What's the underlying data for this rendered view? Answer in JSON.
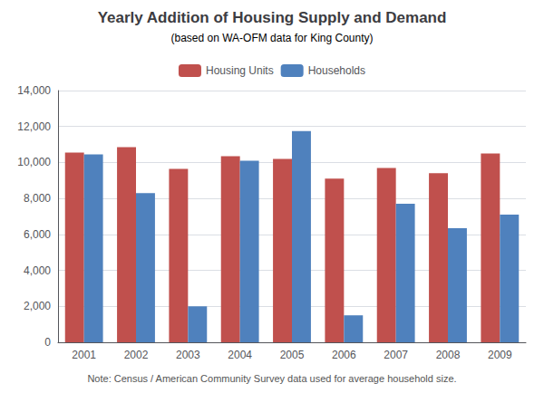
{
  "chart_data": {
    "type": "bar",
    "title": "Yearly Addition of Housing Supply and Demand",
    "subtitle": "(based on WA-OFM data for King County)",
    "annotations": [
      "Note: Census / American Community Survey data used for average household size."
    ],
    "categories": [
      "2001",
      "2002",
      "2003",
      "2004",
      "2005",
      "2006",
      "2007",
      "2008",
      "2009"
    ],
    "series": [
      {
        "name": "Housing Units",
        "color": "#C0504D",
        "values": [
          10550,
          10850,
          9650,
          10350,
          10200,
          9100,
          9700,
          9400,
          10500
        ]
      },
      {
        "name": "Households",
        "color": "#4F81BD",
        "values": [
          10450,
          8300,
          2000,
          10100,
          11750,
          1500,
          7700,
          6350,
          7100
        ]
      }
    ],
    "ylim": [
      0,
      14000
    ],
    "yticks": [
      0,
      {
        "value": 2000,
        "label": "2,000"
      },
      {
        "value": 4000,
        "label": "4,000"
      },
      {
        "value": 6000,
        "label": "6,000"
      },
      {
        "value": 8000,
        "label": "8,000"
      },
      {
        "value": 10000,
        "label": "10,000"
      },
      {
        "value": 12000,
        "label": "12,000"
      },
      {
        "value": 14000,
        "label": "14,000"
      }
    ],
    "grid": true,
    "legend": "top"
  }
}
